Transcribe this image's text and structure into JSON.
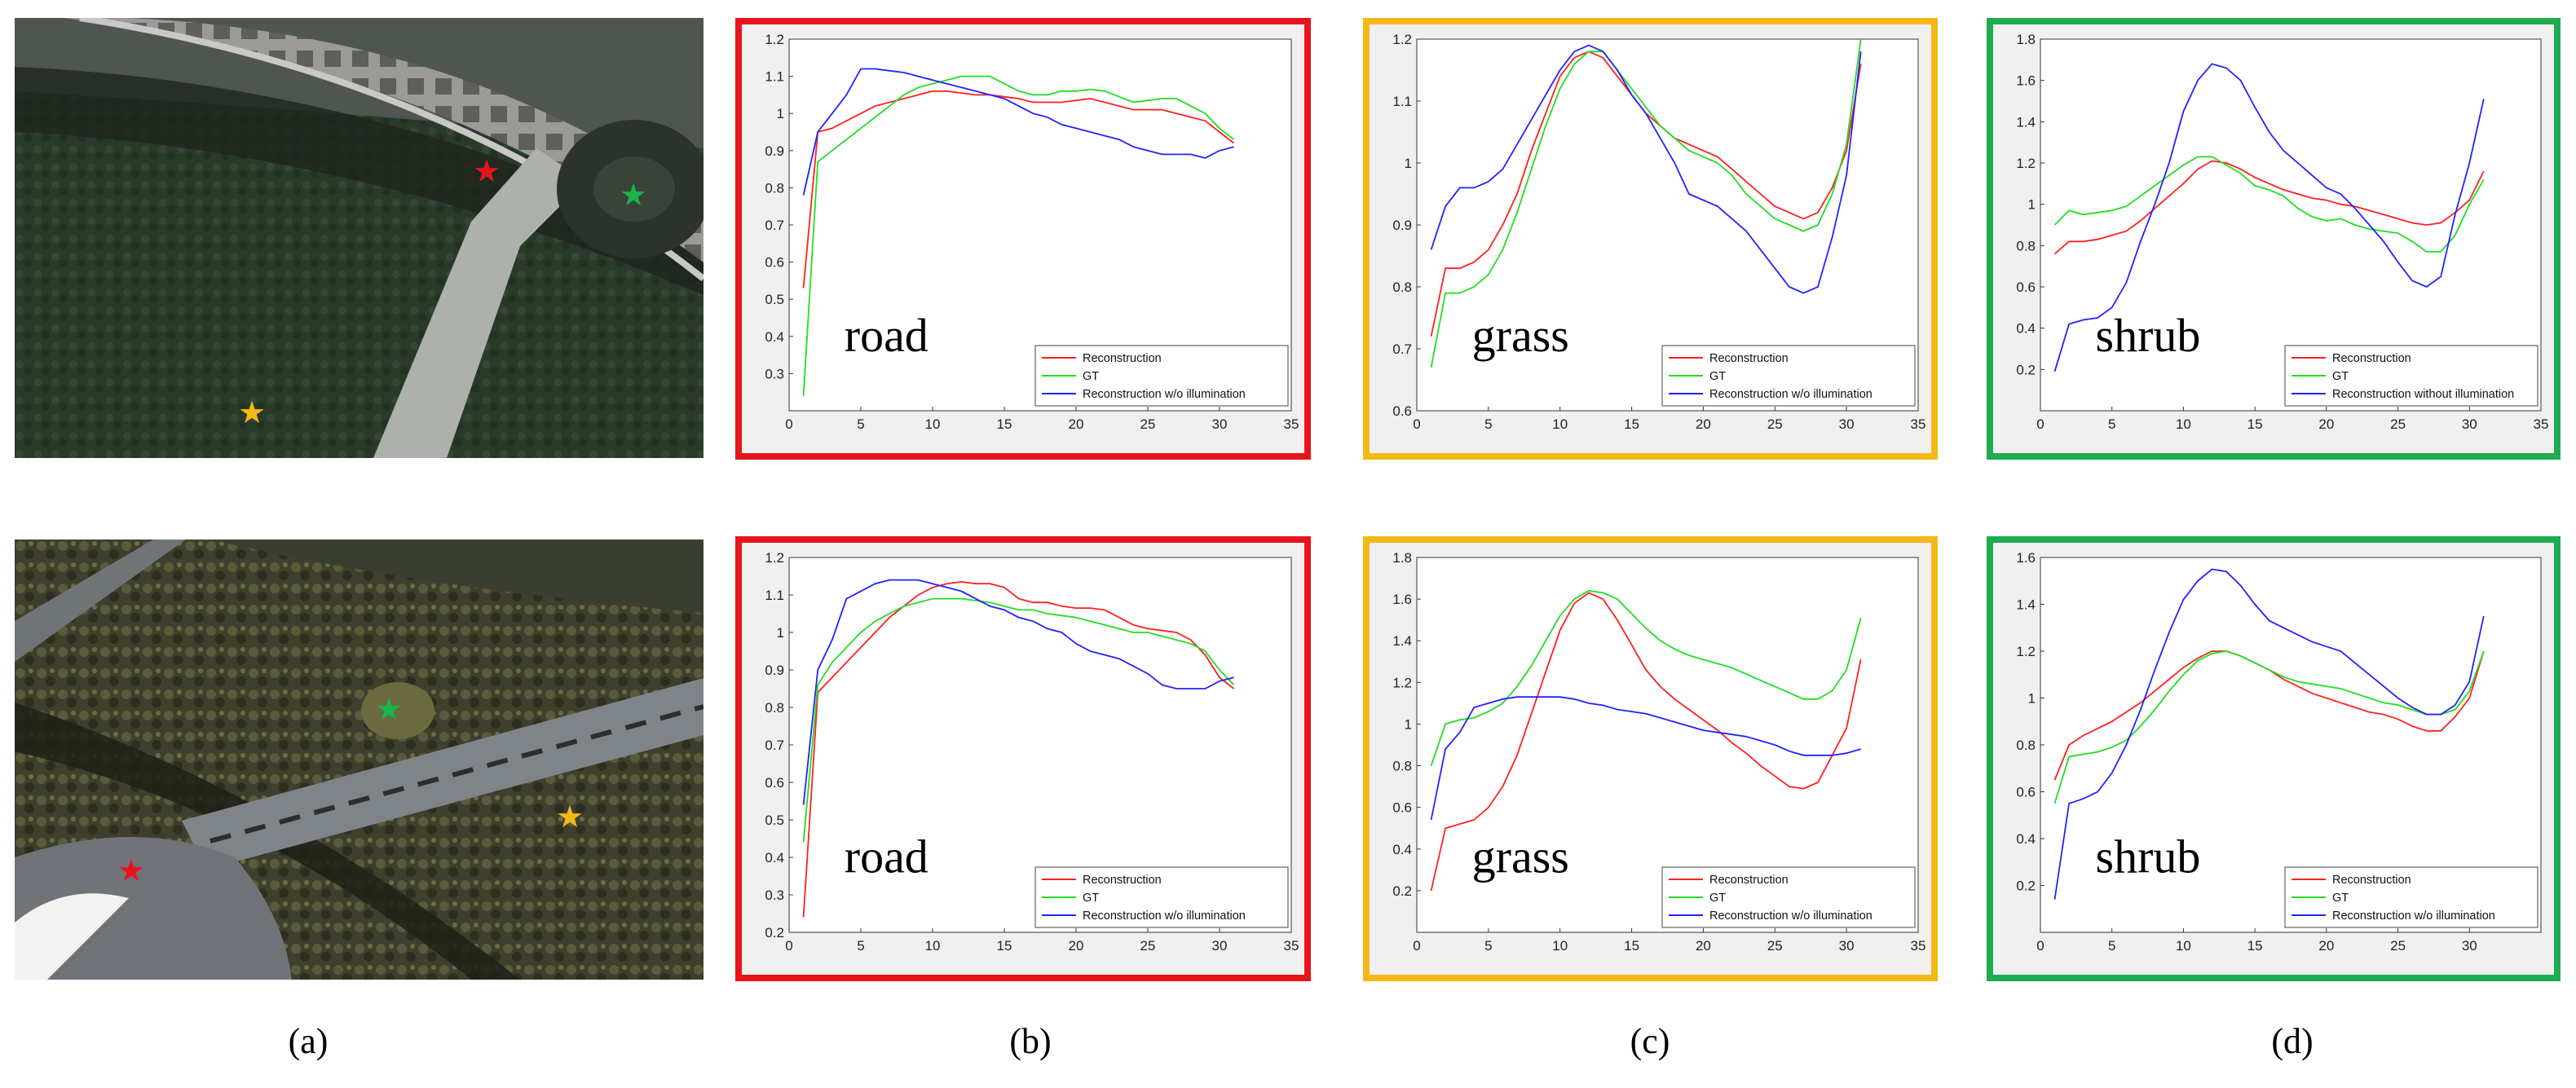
{
  "labels": {
    "a": "(a)",
    "b": "(b)",
    "c": "(c)",
    "d": "(d)"
  },
  "colors": {
    "road": "#e8141b",
    "grass": "#f5b818",
    "shrub": "#1fab4f",
    "reconstruction": "#ff2020",
    "gt": "#22dd22",
    "wo": "#2222ff"
  },
  "chart_data": [
    {
      "id": "b1",
      "type": "line",
      "panel": "(b)",
      "row": 1,
      "title": "road",
      "frame_color": "road",
      "xlim": [
        0,
        35
      ],
      "xticks": [
        0,
        5,
        10,
        15,
        20,
        25,
        30,
        35
      ],
      "ylim": [
        0.2,
        1.2
      ],
      "yticks": [
        0.3,
        0.4,
        0.5,
        0.6,
        0.7,
        0.8,
        0.9,
        1,
        1.1,
        1.2
      ],
      "x": [
        1,
        2,
        3,
        4,
        5,
        6,
        7,
        8,
        9,
        10,
        11,
        12,
        13,
        14,
        15,
        16,
        17,
        18,
        19,
        20,
        21,
        22,
        23,
        24,
        25,
        26,
        27,
        28,
        29,
        30,
        31
      ],
      "series": [
        {
          "name": "Reconstruction",
          "color": "reconstruction",
          "values": [
            0.53,
            0.95,
            0.96,
            0.98,
            1.0,
            1.02,
            1.03,
            1.04,
            1.05,
            1.06,
            1.06,
            1.055,
            1.05,
            1.05,
            1.045,
            1.04,
            1.03,
            1.03,
            1.03,
            1.035,
            1.04,
            1.03,
            1.02,
            1.01,
            1.01,
            1.01,
            1.0,
            0.99,
            0.98,
            0.95,
            0.92
          ]
        },
        {
          "name": "GT",
          "color": "gt",
          "values": [
            0.24,
            0.87,
            0.9,
            0.93,
            0.96,
            0.99,
            1.02,
            1.05,
            1.07,
            1.08,
            1.09,
            1.1,
            1.1,
            1.1,
            1.08,
            1.06,
            1.05,
            1.05,
            1.06,
            1.06,
            1.065,
            1.06,
            1.045,
            1.03,
            1.035,
            1.04,
            1.04,
            1.02,
            1.0,
            0.96,
            0.93
          ]
        },
        {
          "name": "Reconstruction w/o illumination",
          "color": "wo",
          "values": [
            0.78,
            0.95,
            1.0,
            1.05,
            1.12,
            1.12,
            1.115,
            1.11,
            1.1,
            1.09,
            1.08,
            1.07,
            1.06,
            1.05,
            1.04,
            1.02,
            1.0,
            0.99,
            0.97,
            0.96,
            0.95,
            0.94,
            0.93,
            0.91,
            0.9,
            0.89,
            0.89,
            0.89,
            0.88,
            0.9,
            0.91
          ]
        }
      ],
      "legend": [
        "Reconstruction",
        "GT",
        "Reconstruction w/o illumination"
      ]
    },
    {
      "id": "c1",
      "type": "line",
      "panel": "(c)",
      "row": 1,
      "title": "grass",
      "frame_color": "grass",
      "xlim": [
        0,
        35
      ],
      "xticks": [
        0,
        5,
        10,
        15,
        20,
        25,
        30,
        35
      ],
      "ylim": [
        0.6,
        1.2
      ],
      "yticks": [
        0.6,
        0.7,
        0.8,
        0.9,
        1,
        1.1,
        1.2
      ],
      "x": [
        1,
        2,
        3,
        4,
        5,
        6,
        7,
        8,
        9,
        10,
        11,
        12,
        13,
        14,
        15,
        16,
        17,
        18,
        19,
        20,
        21,
        22,
        23,
        24,
        25,
        26,
        27,
        28,
        29,
        30,
        31
      ],
      "series": [
        {
          "name": "Reconstruction",
          "color": "reconstruction",
          "values": [
            0.72,
            0.83,
            0.83,
            0.84,
            0.86,
            0.9,
            0.95,
            1.02,
            1.08,
            1.14,
            1.17,
            1.18,
            1.17,
            1.14,
            1.11,
            1.08,
            1.06,
            1.04,
            1.03,
            1.02,
            1.01,
            0.99,
            0.97,
            0.95,
            0.93,
            0.92,
            0.91,
            0.92,
            0.96,
            1.02,
            1.16
          ]
        },
        {
          "name": "GT",
          "color": "gt",
          "values": [
            0.67,
            0.79,
            0.79,
            0.8,
            0.82,
            0.86,
            0.92,
            0.99,
            1.06,
            1.12,
            1.16,
            1.18,
            1.18,
            1.15,
            1.12,
            1.09,
            1.06,
            1.04,
            1.02,
            1.01,
            1.0,
            0.98,
            0.95,
            0.93,
            0.91,
            0.9,
            0.89,
            0.9,
            0.95,
            1.03,
            1.2
          ]
        },
        {
          "name": "Reconstruction w/o illumination",
          "color": "wo",
          "values": [
            0.86,
            0.93,
            0.96,
            0.96,
            0.97,
            0.99,
            1.03,
            1.07,
            1.11,
            1.15,
            1.18,
            1.19,
            1.18,
            1.15,
            1.11,
            1.08,
            1.04,
            1.0,
            0.95,
            0.94,
            0.93,
            0.91,
            0.89,
            0.86,
            0.83,
            0.8,
            0.79,
            0.8,
            0.88,
            0.98,
            1.18
          ]
        }
      ],
      "legend": [
        "Reconstruction",
        "GT",
        "Reconstruction w/o illumination"
      ]
    },
    {
      "id": "d1",
      "type": "line",
      "panel": "(d)",
      "row": 1,
      "title": "shrub",
      "frame_color": "shrub",
      "xlim": [
        0,
        35
      ],
      "xticks": [
        0,
        5,
        10,
        15,
        20,
        25,
        30,
        35
      ],
      "ylim": [
        0,
        1.8
      ],
      "yticks": [
        0.2,
        0.4,
        0.6,
        0.8,
        1,
        1.2,
        1.4,
        1.6,
        1.8
      ],
      "x": [
        1,
        2,
        3,
        4,
        5,
        6,
        7,
        8,
        9,
        10,
        11,
        12,
        13,
        14,
        15,
        16,
        17,
        18,
        19,
        20,
        21,
        22,
        23,
        24,
        25,
        26,
        27,
        28,
        29,
        30,
        31
      ],
      "series": [
        {
          "name": "Reconstruction",
          "color": "reconstruction",
          "values": [
            0.76,
            0.82,
            0.82,
            0.83,
            0.85,
            0.87,
            0.92,
            0.98,
            1.04,
            1.1,
            1.17,
            1.21,
            1.2,
            1.17,
            1.13,
            1.1,
            1.07,
            1.05,
            1.03,
            1.02,
            1.0,
            0.99,
            0.97,
            0.95,
            0.93,
            0.91,
            0.9,
            0.91,
            0.96,
            1.02,
            1.16
          ]
        },
        {
          "name": "GT",
          "color": "gt",
          "values": [
            0.9,
            0.97,
            0.95,
            0.96,
            0.97,
            0.99,
            1.04,
            1.09,
            1.14,
            1.19,
            1.23,
            1.23,
            1.19,
            1.15,
            1.09,
            1.07,
            1.04,
            0.98,
            0.94,
            0.92,
            0.93,
            0.9,
            0.88,
            0.87,
            0.86,
            0.82,
            0.77,
            0.77,
            0.85,
            1.0,
            1.12
          ]
        },
        {
          "name": "Reconstruction without illumination",
          "color": "wo",
          "values": [
            0.19,
            0.42,
            0.44,
            0.45,
            0.5,
            0.62,
            0.82,
            1.0,
            1.2,
            1.45,
            1.6,
            1.68,
            1.66,
            1.6,
            1.47,
            1.35,
            1.26,
            1.2,
            1.14,
            1.08,
            1.05,
            0.98,
            0.9,
            0.82,
            0.72,
            0.63,
            0.6,
            0.65,
            0.95,
            1.2,
            1.51
          ]
        }
      ],
      "legend": [
        "Reconstruction",
        "GT",
        "Reconstruction without illumination"
      ]
    },
    {
      "id": "b2",
      "type": "line",
      "panel": "(b)",
      "row": 2,
      "title": "road",
      "frame_color": "road",
      "xlim": [
        0,
        35
      ],
      "xticks": [
        0,
        5,
        10,
        15,
        20,
        25,
        30,
        35
      ],
      "ylim": [
        0.2,
        1.2
      ],
      "yticks": [
        0.2,
        0.3,
        0.4,
        0.5,
        0.6,
        0.7,
        0.8,
        0.9,
        1,
        1.1,
        1.2
      ],
      "x": [
        1,
        2,
        3,
        4,
        5,
        6,
        7,
        8,
        9,
        10,
        11,
        12,
        13,
        14,
        15,
        16,
        17,
        18,
        19,
        20,
        21,
        22,
        23,
        24,
        25,
        26,
        27,
        28,
        29,
        30,
        31
      ],
      "series": [
        {
          "name": "Reconstruction",
          "color": "reconstruction",
          "values": [
            0.24,
            0.84,
            0.88,
            0.92,
            0.96,
            1.0,
            1.04,
            1.07,
            1.1,
            1.12,
            1.13,
            1.135,
            1.13,
            1.13,
            1.12,
            1.09,
            1.08,
            1.08,
            1.07,
            1.065,
            1.065,
            1.06,
            1.04,
            1.02,
            1.01,
            1.005,
            1.0,
            0.98,
            0.94,
            0.88,
            0.85
          ]
        },
        {
          "name": "GT",
          "color": "gt",
          "values": [
            0.44,
            0.86,
            0.92,
            0.96,
            1.0,
            1.03,
            1.05,
            1.07,
            1.08,
            1.09,
            1.09,
            1.09,
            1.085,
            1.08,
            1.07,
            1.06,
            1.06,
            1.05,
            1.045,
            1.04,
            1.03,
            1.02,
            1.01,
            1.0,
            1.0,
            0.99,
            0.98,
            0.97,
            0.95,
            0.9,
            0.86
          ]
        },
        {
          "name": "Reconstruction w/o illumination",
          "color": "wo",
          "values": [
            0.54,
            0.9,
            0.98,
            1.09,
            1.11,
            1.13,
            1.14,
            1.14,
            1.14,
            1.13,
            1.12,
            1.11,
            1.09,
            1.07,
            1.06,
            1.04,
            1.03,
            1.01,
            1.0,
            0.97,
            0.95,
            0.94,
            0.93,
            0.91,
            0.89,
            0.86,
            0.85,
            0.85,
            0.85,
            0.87,
            0.88
          ]
        }
      ],
      "legend": [
        "Reconstruction",
        "GT",
        "Reconstruction w/o illumination"
      ]
    },
    {
      "id": "c2",
      "type": "line",
      "panel": "(c)",
      "row": 2,
      "title": "grass",
      "frame_color": "grass",
      "xlim": [
        0,
        35
      ],
      "xticks": [
        0,
        5,
        10,
        15,
        20,
        25,
        30,
        35
      ],
      "ylim": [
        0,
        1.8
      ],
      "yticks": [
        0.2,
        0.4,
        0.6,
        0.8,
        1,
        1.2,
        1.4,
        1.6,
        1.8
      ],
      "x": [
        1,
        2,
        3,
        4,
        5,
        6,
        7,
        8,
        9,
        10,
        11,
        12,
        13,
        14,
        15,
        16,
        17,
        18,
        19,
        20,
        21,
        22,
        23,
        24,
        25,
        26,
        27,
        28,
        29,
        30,
        31
      ],
      "series": [
        {
          "name": "Reconstruction",
          "color": "reconstruction",
          "values": [
            0.2,
            0.5,
            0.52,
            0.54,
            0.6,
            0.7,
            0.85,
            1.05,
            1.25,
            1.45,
            1.58,
            1.63,
            1.6,
            1.5,
            1.38,
            1.26,
            1.18,
            1.12,
            1.07,
            1.02,
            0.97,
            0.91,
            0.86,
            0.8,
            0.75,
            0.7,
            0.69,
            0.72,
            0.85,
            0.98,
            1.31
          ]
        },
        {
          "name": "GT",
          "color": "gt",
          "values": [
            0.8,
            1.0,
            1.02,
            1.03,
            1.06,
            1.1,
            1.18,
            1.28,
            1.4,
            1.52,
            1.6,
            1.64,
            1.63,
            1.6,
            1.53,
            1.46,
            1.4,
            1.36,
            1.33,
            1.31,
            1.29,
            1.27,
            1.24,
            1.21,
            1.18,
            1.15,
            1.12,
            1.12,
            1.16,
            1.26,
            1.51
          ]
        },
        {
          "name": "Reconstruction w/o illumination",
          "color": "wo",
          "values": [
            0.54,
            0.88,
            0.96,
            1.08,
            1.1,
            1.12,
            1.13,
            1.13,
            1.13,
            1.13,
            1.12,
            1.1,
            1.09,
            1.07,
            1.06,
            1.05,
            1.03,
            1.01,
            0.99,
            0.97,
            0.96,
            0.95,
            0.94,
            0.92,
            0.9,
            0.87,
            0.85,
            0.85,
            0.85,
            0.86,
            0.88
          ]
        }
      ],
      "legend": [
        "Reconstruction",
        "GT",
        "Reconstruction w/o illumination"
      ]
    },
    {
      "id": "d2",
      "type": "line",
      "panel": "(d)",
      "row": 2,
      "title": "shrub",
      "frame_color": "shrub",
      "xlim": [
        0,
        35
      ],
      "xticks": [
        0,
        5,
        10,
        15,
        20,
        25,
        30
      ],
      "ylim": [
        0,
        1.6
      ],
      "yticks": [
        0.2,
        0.4,
        0.6,
        0.8,
        1,
        1.2,
        1.4,
        1.6
      ],
      "x": [
        1,
        2,
        3,
        4,
        5,
        6,
        7,
        8,
        9,
        10,
        11,
        12,
        13,
        14,
        15,
        16,
        17,
        18,
        19,
        20,
        21,
        22,
        23,
        24,
        25,
        26,
        27,
        28,
        29,
        30,
        31
      ],
      "series": [
        {
          "name": "Reconstruction",
          "color": "reconstruction",
          "values": [
            0.65,
            0.8,
            0.84,
            0.87,
            0.9,
            0.94,
            0.98,
            1.03,
            1.08,
            1.13,
            1.17,
            1.2,
            1.2,
            1.18,
            1.15,
            1.12,
            1.08,
            1.05,
            1.02,
            1.0,
            0.98,
            0.96,
            0.94,
            0.93,
            0.91,
            0.88,
            0.86,
            0.86,
            0.92,
            1.0,
            1.2
          ]
        },
        {
          "name": "GT",
          "color": "gt",
          "values": [
            0.55,
            0.75,
            0.76,
            0.77,
            0.79,
            0.82,
            0.88,
            0.95,
            1.03,
            1.1,
            1.16,
            1.19,
            1.2,
            1.18,
            1.15,
            1.12,
            1.09,
            1.07,
            1.06,
            1.05,
            1.04,
            1.02,
            1.0,
            0.98,
            0.97,
            0.95,
            0.93,
            0.93,
            0.95,
            1.03,
            1.2
          ]
        },
        {
          "name": "Reconstruction w/o illumination",
          "color": "wo",
          "values": [
            0.14,
            0.55,
            0.57,
            0.6,
            0.68,
            0.8,
            0.95,
            1.12,
            1.28,
            1.42,
            1.5,
            1.55,
            1.54,
            1.48,
            1.4,
            1.33,
            1.3,
            1.27,
            1.24,
            1.22,
            1.2,
            1.15,
            1.1,
            1.05,
            1.0,
            0.96,
            0.93,
            0.93,
            0.97,
            1.07,
            1.35
          ]
        }
      ],
      "legend": [
        "Reconstruction",
        "GT",
        "Reconstruction w/o illumination"
      ]
    }
  ]
}
